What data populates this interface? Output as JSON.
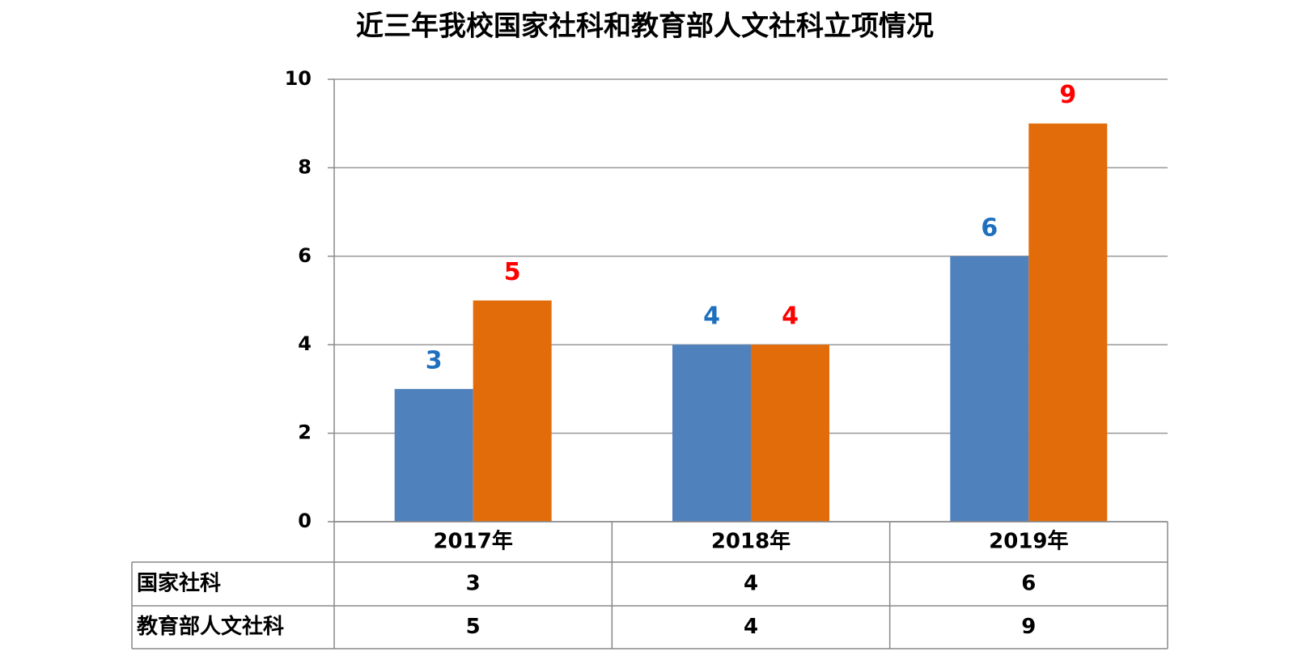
{
  "chart_data": {
    "type": "bar",
    "title": "近三年我校国家社科和教育部人文社科立项情况",
    "categories": [
      "2017年",
      "2018年",
      "2019年"
    ],
    "series": [
      {
        "name": "国家社科",
        "color": "#4f81bd",
        "label_color": "#1f6fbf",
        "values": [
          3,
          4,
          6
        ]
      },
      {
        "name": "教育部人文社科",
        "color": "#e36c0a",
        "label_color": "#ff0000",
        "values": [
          5,
          4,
          9
        ]
      }
    ],
    "ylim": [
      0,
      10
    ],
    "yticks": [
      0,
      2,
      4,
      6,
      8,
      10
    ],
    "grid": true,
    "data_table": true
  }
}
